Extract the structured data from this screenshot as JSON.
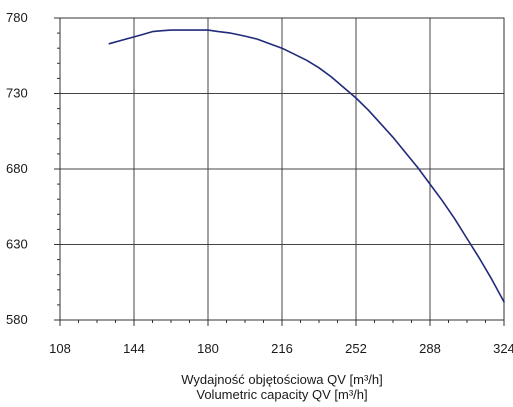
{
  "chart_data": {
    "type": "line",
    "xlabel_line1": "Wydajność objętościowa QV [m³/h]",
    "xlabel_line2": "Volumetric capacity QV [m³/h]",
    "ylabel": "",
    "xlim": [
      108,
      324
    ],
    "ylim": [
      580,
      780
    ],
    "xticks": [
      108,
      144,
      180,
      216,
      252,
      288,
      324
    ],
    "yticks": [
      580,
      630,
      680,
      730,
      780
    ],
    "grid": true,
    "series": [
      {
        "color": "#1f2a7a",
        "x": [
          132,
          140,
          148,
          153,
          157,
          162,
          168,
          174,
          180,
          185,
          191,
          198,
          204,
          210,
          216,
          222,
          228,
          234,
          240,
          246,
          252,
          258,
          264,
          270,
          276,
          282,
          288,
          294,
          300,
          306,
          312,
          318,
          324
        ],
        "y": [
          763,
          766,
          769,
          771,
          771.5,
          772,
          772,
          772,
          772,
          771,
          770,
          768,
          766,
          763,
          760,
          756,
          752,
          747,
          741,
          734,
          727,
          719,
          710,
          701,
          691,
          681,
          670,
          659,
          647,
          634,
          621,
          607,
          592
        ]
      }
    ]
  }
}
